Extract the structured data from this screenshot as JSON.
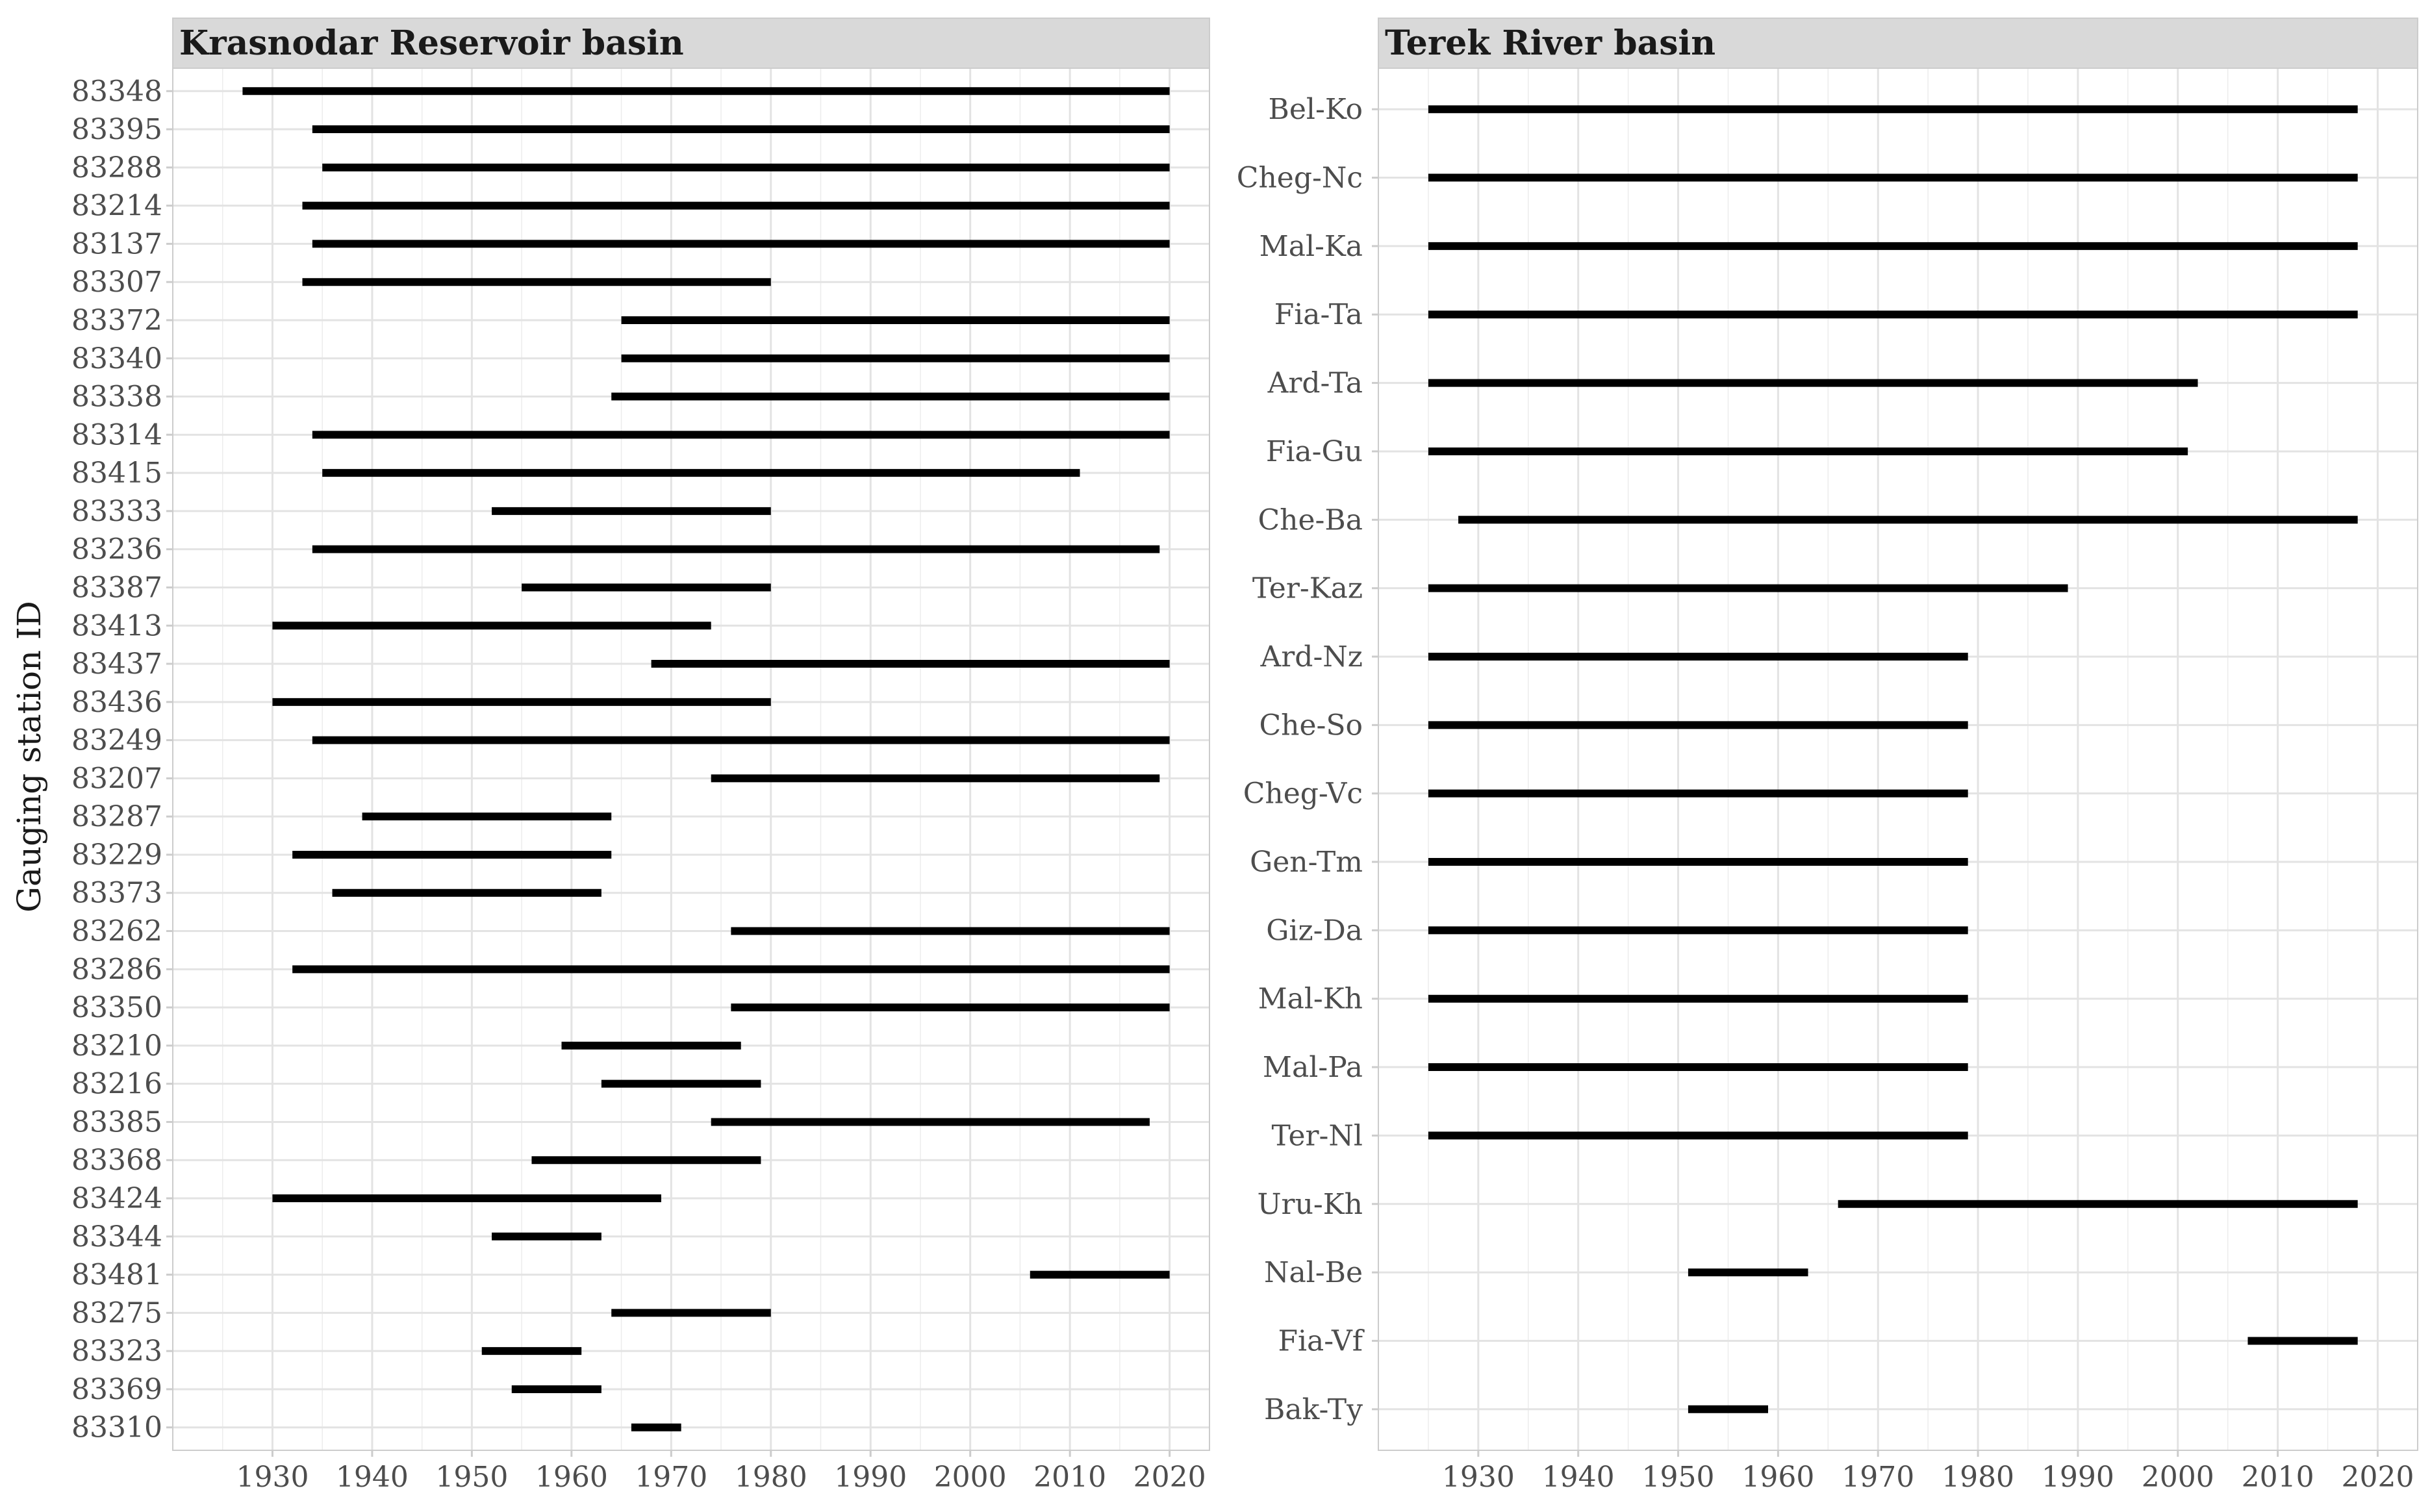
{
  "ylabel": "Gauging station ID",
  "chart_data": [
    {
      "type": "timeline",
      "title": "Krasnodar Reservoir basin",
      "ylabel": "Gauging station ID",
      "xlim": [
        1920,
        2024
      ],
      "xticks": [
        1930,
        1940,
        1950,
        1960,
        1970,
        1980,
        1990,
        2000,
        2010,
        2020
      ],
      "stations": [
        {
          "id": "83348",
          "start": 1927,
          "end": 2020
        },
        {
          "id": "83395",
          "start": 1934,
          "end": 2020
        },
        {
          "id": "83288",
          "start": 1935,
          "end": 2020
        },
        {
          "id": "83214",
          "start": 1933,
          "end": 2020
        },
        {
          "id": "83137",
          "start": 1934,
          "end": 2020
        },
        {
          "id": "83307",
          "start": 1933,
          "end": 1980
        },
        {
          "id": "83372",
          "start": 1965,
          "end": 2020
        },
        {
          "id": "83340",
          "start": 1965,
          "end": 2020
        },
        {
          "id": "83338",
          "start": 1964,
          "end": 2020
        },
        {
          "id": "83314",
          "start": 1934,
          "end": 2020
        },
        {
          "id": "83415",
          "start": 1935,
          "end": 2011
        },
        {
          "id": "83333",
          "start": 1952,
          "end": 1980
        },
        {
          "id": "83236",
          "start": 1934,
          "end": 2019
        },
        {
          "id": "83387",
          "start": 1955,
          "end": 1980
        },
        {
          "id": "83413",
          "start": 1930,
          "end": 1974
        },
        {
          "id": "83437",
          "start": 1968,
          "end": 2020
        },
        {
          "id": "83436",
          "start": 1930,
          "end": 1980
        },
        {
          "id": "83249",
          "start": 1934,
          "end": 2020
        },
        {
          "id": "83207",
          "start": 1974,
          "end": 2019
        },
        {
          "id": "83287",
          "start": 1939,
          "end": 1964
        },
        {
          "id": "83229",
          "start": 1932,
          "end": 1964
        },
        {
          "id": "83373",
          "start": 1936,
          "end": 1963
        },
        {
          "id": "83262",
          "start": 1976,
          "end": 2020
        },
        {
          "id": "83286",
          "start": 1932,
          "end": 2020
        },
        {
          "id": "83350",
          "start": 1976,
          "end": 2020
        },
        {
          "id": "83210",
          "start": 1959,
          "end": 1977
        },
        {
          "id": "83216",
          "start": 1963,
          "end": 1979
        },
        {
          "id": "83385",
          "start": 1974,
          "end": 2018
        },
        {
          "id": "83368",
          "start": 1956,
          "end": 1979
        },
        {
          "id": "83424",
          "start": 1930,
          "end": 1969
        },
        {
          "id": "83344",
          "start": 1952,
          "end": 1963
        },
        {
          "id": "83481",
          "start": 2006,
          "end": 2020
        },
        {
          "id": "83275",
          "start": 1964,
          "end": 1980
        },
        {
          "id": "83323",
          "start": 1951,
          "end": 1961
        },
        {
          "id": "83369",
          "start": 1954,
          "end": 1963
        },
        {
          "id": "83310",
          "start": 1966,
          "end": 1971
        }
      ]
    },
    {
      "type": "timeline",
      "title": "Terek River basin",
      "xlim": [
        1920,
        2024
      ],
      "xticks": [
        1930,
        1940,
        1950,
        1960,
        1970,
        1980,
        1990,
        2000,
        2010,
        2020
      ],
      "stations": [
        {
          "id": "Bel-Ko",
          "start": 1925,
          "end": 2018
        },
        {
          "id": "Cheg-Nc",
          "start": 1925,
          "end": 2018
        },
        {
          "id": "Mal-Ka",
          "start": 1925,
          "end": 2018
        },
        {
          "id": "Fia-Ta",
          "start": 1925,
          "end": 2018
        },
        {
          "id": "Ard-Ta",
          "start": 1925,
          "end": 2002
        },
        {
          "id": "Fia-Gu",
          "start": 1925,
          "end": 2001
        },
        {
          "id": "Che-Ba",
          "start": 1928,
          "end": 2018
        },
        {
          "id": "Ter-Kaz",
          "start": 1925,
          "end": 1989
        },
        {
          "id": "Ard-Nz",
          "start": 1925,
          "end": 1979
        },
        {
          "id": "Che-So",
          "start": 1925,
          "end": 1979
        },
        {
          "id": "Cheg-Vc",
          "start": 1925,
          "end": 1979
        },
        {
          "id": "Gen-Tm",
          "start": 1925,
          "end": 1979
        },
        {
          "id": "Giz-Da",
          "start": 1925,
          "end": 1979
        },
        {
          "id": "Mal-Kh",
          "start": 1925,
          "end": 1979
        },
        {
          "id": "Mal-Pa",
          "start": 1925,
          "end": 1979
        },
        {
          "id": "Ter-Nl",
          "start": 1925,
          "end": 1979
        },
        {
          "id": "Uru-Kh",
          "start": 1966,
          "end": 2018
        },
        {
          "id": "Nal-Be",
          "start": 1951,
          "end": 1963
        },
        {
          "id": "Fia-Vf",
          "start": 2007,
          "end": 2018
        },
        {
          "id": "Bak-Ty",
          "start": 1951,
          "end": 1959
        }
      ]
    }
  ]
}
